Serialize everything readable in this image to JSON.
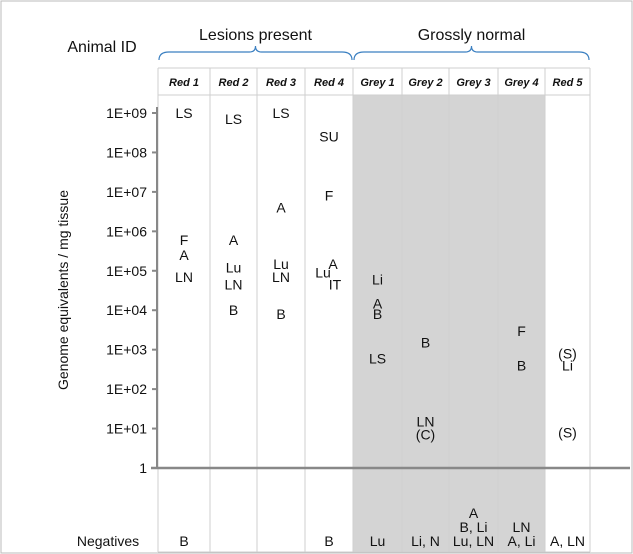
{
  "chart_data": {
    "type": "table",
    "row_header": "Animal ID",
    "ylabel": "Genome equivalents / mg tissue",
    "groups": [
      {
        "name": "Lesions present",
        "animals": [
          "Red 1",
          "Red 2",
          "Red 3",
          "Red 4"
        ]
      },
      {
        "name": "Grossly normal",
        "animals": [
          "Grey 1",
          "Grey 2",
          "Grey 3",
          "Grey 4",
          "Red 5"
        ]
      }
    ],
    "animals": [
      "Red 1",
      "Red 2",
      "Red 3",
      "Red 4",
      "Grey 1",
      "Grey 2",
      "Grey 3",
      "Grey 4",
      "Red 5"
    ],
    "shaded_animals": [
      "Grey 1",
      "Grey 2",
      "Grey 3",
      "Grey 4"
    ],
    "shade_color": "#d4d4d4",
    "y_scale": "log",
    "y_ticks": [
      {
        "label": "1E+09",
        "value": 1000000000
      },
      {
        "label": "1E+08",
        "value": 100000000
      },
      {
        "label": "1E+07",
        "value": 10000000
      },
      {
        "label": "1E+06",
        "value": 1000000
      },
      {
        "label": "1E+05",
        "value": 100000
      },
      {
        "label": "1E+04",
        "value": 10000
      },
      {
        "label": "1E+03",
        "value": 1000
      },
      {
        "label": "1E+02",
        "value": 100
      },
      {
        "label": "1E+01",
        "value": 10
      },
      {
        "label": "1",
        "value": 1
      }
    ],
    "points": [
      {
        "animal": "Red 1",
        "label": "LS",
        "value": 1000000000
      },
      {
        "animal": "Red 1",
        "label": "F",
        "value": 600000
      },
      {
        "animal": "Red 1",
        "label": "A",
        "value": 250000
      },
      {
        "animal": "Red 1",
        "label": "LN",
        "value": 70000
      },
      {
        "animal": "Red 2",
        "label": "LS",
        "value": 700000000
      },
      {
        "animal": "Red 2",
        "label": "A",
        "value": 600000
      },
      {
        "animal": "Red 2",
        "label": "Lu",
        "value": 120000
      },
      {
        "animal": "Red 2",
        "label": "LN",
        "value": 45000
      },
      {
        "animal": "Red 2",
        "label": "B",
        "value": 10000
      },
      {
        "animal": "Red 3",
        "label": "LS",
        "value": 1000000000
      },
      {
        "animal": "Red 3",
        "label": "A",
        "value": 4000000
      },
      {
        "animal": "Red 3",
        "label": "Lu",
        "value": 150000
      },
      {
        "animal": "Red 3",
        "label": "LN",
        "value": 70000
      },
      {
        "animal": "Red 3",
        "label": "B",
        "value": 8000
      },
      {
        "animal": "Red 4",
        "label": "SU",
        "value": 250000000
      },
      {
        "animal": "Red 4",
        "label": "F",
        "value": 8000000
      },
      {
        "animal": "Red 4",
        "label": "A",
        "value": 150000
      },
      {
        "animal": "Red 4",
        "label": "Lu",
        "value": 90000
      },
      {
        "animal": "Red 4",
        "label": "IT",
        "value": 45000
      },
      {
        "animal": "Grey 1",
        "label": "Li",
        "value": 60000
      },
      {
        "animal": "Grey 1",
        "label": "A",
        "value": 15000
      },
      {
        "animal": "Grey 1",
        "label": "B",
        "value": 8000
      },
      {
        "animal": "Grey 1",
        "label": "LS",
        "value": 600
      },
      {
        "animal": "Grey 2",
        "label": "B",
        "value": 1500
      },
      {
        "animal": "Grey 2",
        "label": "LN",
        "value": 15
      },
      {
        "animal": "Grey 2",
        "label": "(C)",
        "value": 7
      },
      {
        "animal": "Grey 4",
        "label": "F",
        "value": 3000
      },
      {
        "animal": "Grey 4",
        "label": "B",
        "value": 400
      },
      {
        "animal": "Red 5",
        "label": "(S)",
        "value": 800
      },
      {
        "animal": "Red 5",
        "label": "Li",
        "value": 400
      },
      {
        "animal": "Red 5",
        "label": "(S)",
        "value": 8
      }
    ],
    "negatives_label": "Negatives",
    "negatives": [
      {
        "animal": "Red 1",
        "lines": [
          "B"
        ]
      },
      {
        "animal": "Red 2",
        "lines": []
      },
      {
        "animal": "Red 3",
        "lines": []
      },
      {
        "animal": "Red 4",
        "lines": [
          "B"
        ]
      },
      {
        "animal": "Grey 1",
        "lines": [
          "Lu"
        ]
      },
      {
        "animal": "Grey 2",
        "lines": [
          "Li, N"
        ]
      },
      {
        "animal": "Grey 3",
        "lines": [
          "A",
          "B,  Li",
          "Lu, LN"
        ]
      },
      {
        "animal": "Grey 4",
        "lines": [
          "LN",
          "A, Li"
        ]
      },
      {
        "animal": "Red 5",
        "lines": [
          "A, LN"
        ]
      }
    ]
  }
}
